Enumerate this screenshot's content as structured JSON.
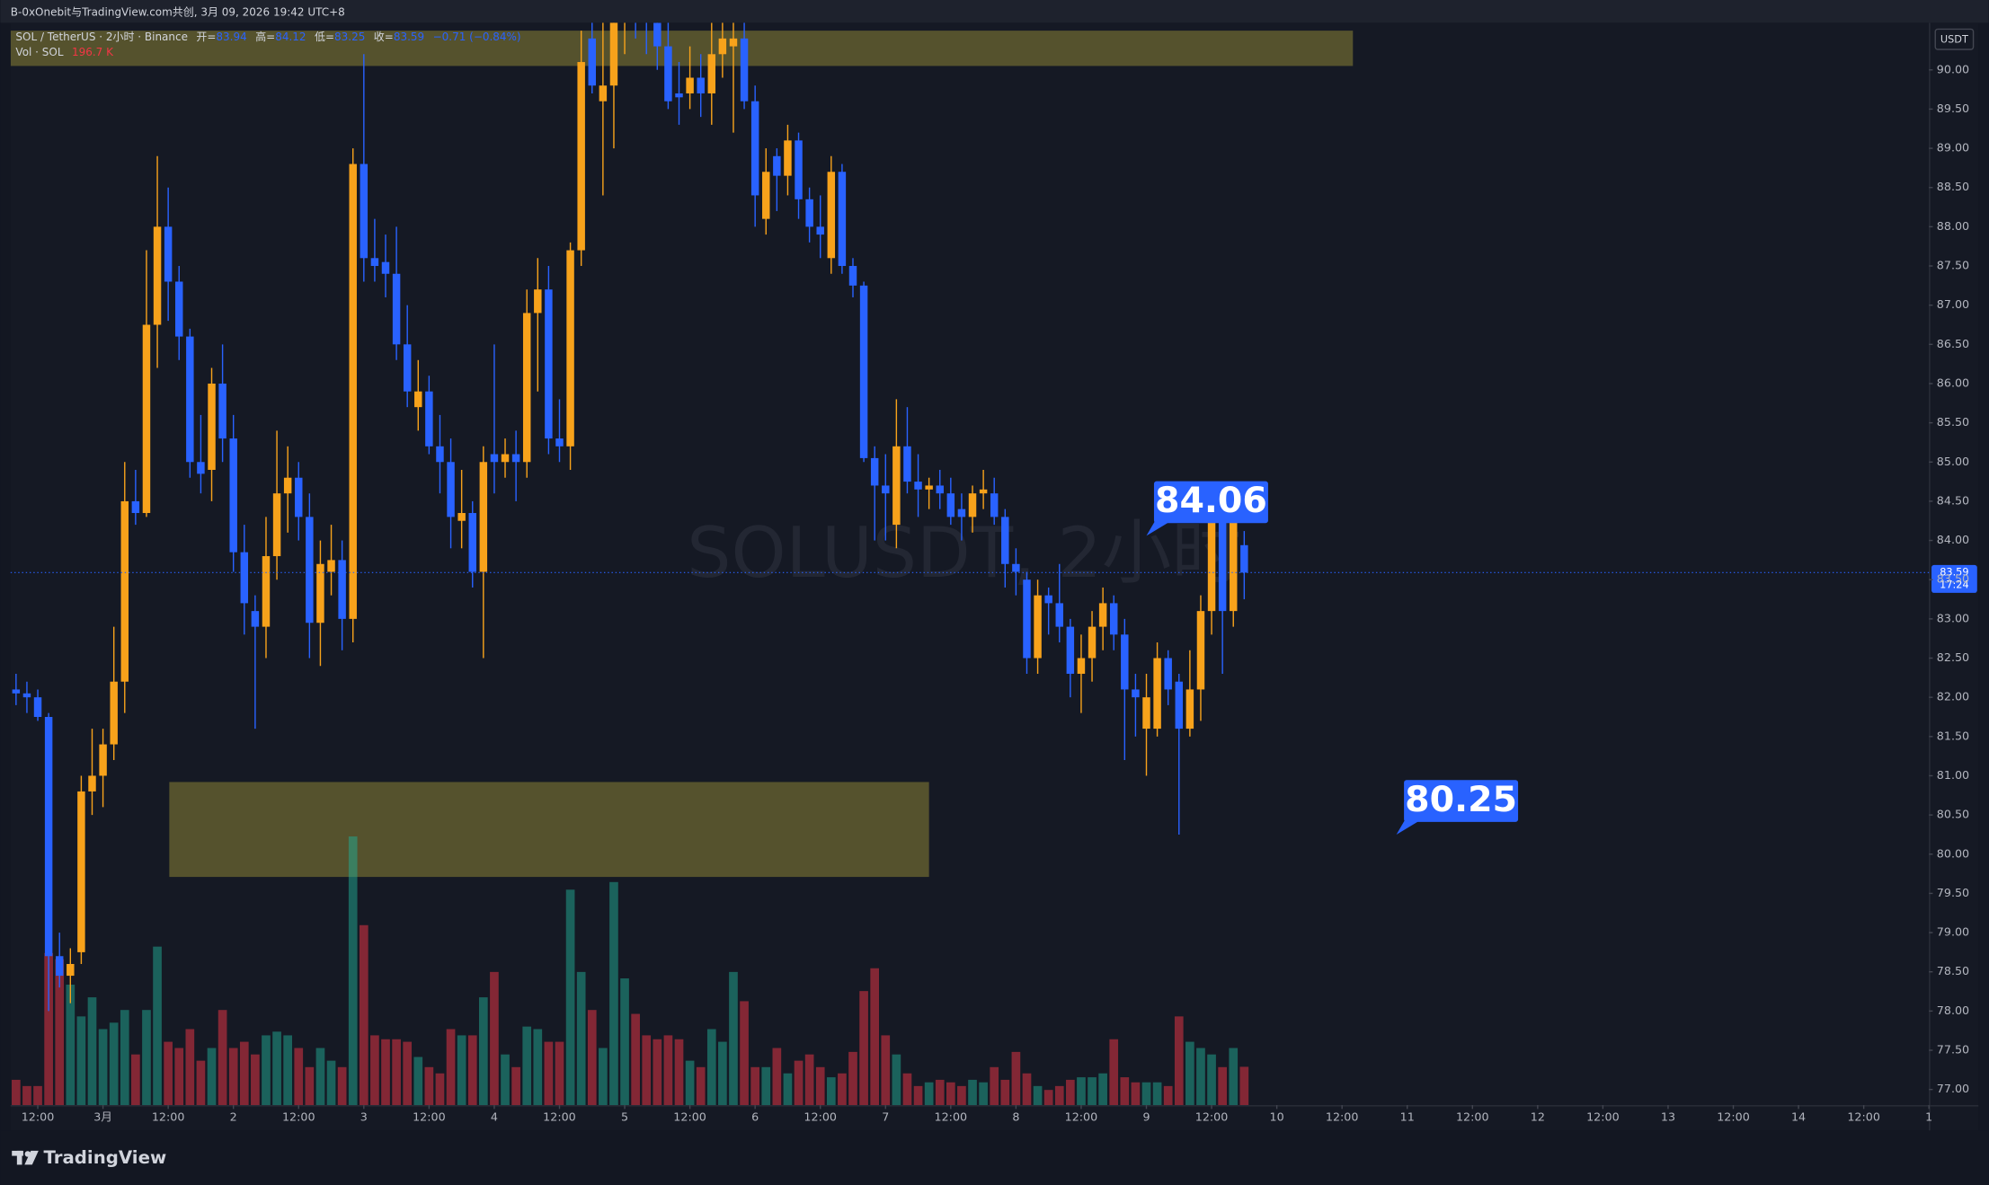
{
  "header": {
    "text": "B-0xOnebit与TradingView.com共创, 3月 09, 2026 19:42 UTC+8"
  },
  "chart_data": {
    "type": "candlestick",
    "legend": {
      "symbol": "SOL / TetherUS · 2小时 · Binance",
      "open_label": "开=",
      "high_label": "高=",
      "low_label": "低=",
      "close_label": "收=",
      "change_label": "−0.71 (−0.84%)"
    },
    "watermark": "SOLUSDT, 2小时",
    "currency": "USDT",
    "countdown": "17:24",
    "up_color": "#f7a21b",
    "down_color": "#2962ff",
    "open": [
      82.1,
      82.05,
      82.0,
      81.75,
      78.7,
      78.45,
      78.75,
      80.8,
      81.0,
      81.4,
      82.2,
      84.5,
      84.35,
      86.75,
      88.0,
      87.3,
      86.6,
      85.0,
      84.9,
      86.0,
      85.3,
      83.85,
      83.1,
      82.9,
      83.8,
      84.6,
      84.8,
      84.3,
      82.95,
      83.6,
      83.75,
      83.0,
      88.8,
      87.6,
      87.55,
      87.4,
      86.5,
      85.7,
      85.9,
      85.2,
      85.0,
      84.25,
      84.35,
      83.6,
      85.1,
      85.0,
      85.1,
      85.0,
      86.9,
      87.2,
      85.3,
      85.2,
      87.7,
      90.4,
      89.6,
      89.8,
      90.7,
      90.9,
      90.8,
      90.6,
      90.3,
      89.7,
      89.7,
      89.9,
      89.7,
      90.2,
      90.3,
      90.4,
      89.6,
      88.1,
      88.9,
      88.65,
      89.1,
      88.35,
      88.0,
      87.6,
      88.7,
      87.5,
      87.25,
      85.05,
      84.7,
      84.2,
      85.2,
      84.75,
      84.65,
      84.7,
      84.6,
      84.4,
      84.3,
      84.6,
      84.6,
      84.3,
      83.7,
      83.5,
      82.5,
      83.3,
      83.2,
      82.9,
      82.3,
      82.5,
      82.9,
      83.2,
      82.8,
      82.1,
      81.6,
      81.6,
      82.5,
      82.2,
      81.6,
      82.1,
      83.1,
      84.3,
      83.1,
      83.94
    ],
    "high": [
      82.3,
      82.2,
      82.1,
      81.8,
      79.0,
      78.8,
      81.0,
      81.6,
      81.6,
      82.9,
      85.0,
      84.9,
      87.7,
      88.9,
      88.5,
      87.5,
      86.7,
      85.6,
      86.2,
      86.5,
      85.6,
      84.2,
      83.3,
      84.3,
      85.4,
      85.2,
      85.0,
      84.6,
      84.0,
      84.2,
      84.0,
      89.0,
      90.2,
      88.1,
      87.9,
      88.0,
      87.0,
      86.3,
      86.1,
      85.6,
      85.3,
      84.9,
      84.5,
      85.2,
      86.5,
      85.3,
      85.4,
      87.2,
      87.6,
      87.5,
      85.8,
      87.8,
      90.5,
      91.0,
      90.8,
      91.2,
      91.4,
      91.3,
      91.1,
      90.9,
      90.8,
      90.1,
      90.3,
      90.2,
      90.6,
      90.8,
      90.7,
      90.7,
      89.8,
      89.0,
      89.0,
      89.3,
      89.2,
      88.5,
      88.4,
      88.9,
      88.8,
      87.6,
      87.3,
      85.2,
      85.1,
      85.8,
      85.7,
      85.1,
      84.8,
      84.9,
      84.8,
      84.6,
      84.7,
      84.9,
      84.8,
      84.4,
      83.9,
      83.6,
      83.5,
      83.4,
      83.7,
      83.0,
      82.8,
      83.1,
      83.4,
      83.3,
      83.0,
      82.3,
      82.3,
      82.7,
      82.6,
      82.3,
      82.6,
      83.3,
      84.5,
      84.4,
      84.5,
      84.12
    ],
    "low": [
      81.9,
      81.8,
      81.7,
      78.0,
      78.3,
      78.1,
      78.6,
      80.5,
      80.6,
      81.2,
      81.8,
      84.2,
      84.3,
      86.2,
      86.8,
      86.3,
      84.8,
      84.6,
      84.5,
      85.0,
      83.6,
      82.8,
      81.6,
      82.5,
      83.5,
      84.1,
      84.0,
      82.5,
      82.4,
      83.3,
      82.6,
      82.7,
      87.3,
      87.3,
      87.1,
      86.3,
      85.7,
      85.4,
      85.1,
      84.6,
      83.9,
      83.9,
      83.4,
      82.5,
      84.6,
      84.8,
      84.5,
      84.8,
      85.9,
      85.1,
      85.0,
      84.9,
      87.5,
      89.7,
      88.4,
      89.0,
      90.2,
      90.4,
      90.2,
      90.0,
      89.5,
      89.3,
      89.5,
      89.4,
      89.3,
      89.9,
      89.2,
      89.5,
      88.0,
      87.9,
      88.2,
      88.4,
      88.1,
      87.8,
      87.6,
      87.4,
      87.4,
      87.1,
      85.0,
      84.0,
      84.0,
      83.9,
      84.6,
      84.3,
      84.4,
      84.4,
      84.2,
      84.0,
      84.1,
      84.4,
      84.2,
      83.4,
      83.3,
      82.3,
      82.3,
      82.8,
      82.7,
      82.0,
      81.8,
      82.2,
      82.6,
      82.6,
      81.2,
      81.5,
      81.0,
      81.5,
      81.9,
      80.25,
      81.5,
      81.7,
      82.8,
      82.3,
      82.9,
      83.25
    ],
    "close": [
      82.05,
      82.0,
      81.75,
      78.7,
      78.45,
      78.6,
      80.8,
      81.0,
      81.4,
      82.2,
      84.5,
      84.35,
      86.75,
      88.0,
      87.3,
      86.6,
      85.0,
      84.85,
      86.0,
      85.3,
      83.85,
      83.2,
      82.9,
      83.8,
      84.6,
      84.8,
      84.3,
      82.95,
      83.7,
      83.75,
      83.0,
      88.8,
      87.6,
      87.5,
      87.4,
      86.5,
      85.9,
      85.9,
      85.2,
      85.0,
      84.3,
      84.35,
      83.6,
      85.0,
      85.0,
      85.1,
      85.0,
      86.9,
      87.2,
      85.3,
      85.2,
      87.7,
      90.1,
      89.8,
      89.8,
      90.7,
      90.9,
      90.8,
      90.6,
      90.3,
      89.6,
      89.65,
      89.9,
      89.7,
      90.2,
      90.4,
      90.4,
      89.6,
      88.4,
      88.7,
      88.65,
      89.1,
      88.35,
      88.0,
      87.9,
      88.7,
      87.5,
      87.25,
      85.05,
      84.7,
      84.6,
      85.2,
      84.75,
      84.65,
      84.7,
      84.6,
      84.3,
      84.3,
      84.6,
      84.65,
      84.3,
      83.7,
      83.6,
      82.5,
      83.3,
      83.2,
      82.9,
      82.3,
      82.5,
      82.9,
      83.2,
      82.8,
      82.1,
      82.0,
      82.0,
      82.5,
      82.1,
      81.6,
      82.1,
      83.1,
      84.3,
      83.1,
      84.3,
      83.59
    ],
    "volume": {
      "name": "Vol · SOL",
      "last_label": "196.7 K",
      "up_color": "#22ab94",
      "down_color": "#f23645",
      "values": [
        130,
        98,
        98,
        780,
        748,
        618,
        455,
        553,
        390,
        423,
        488,
        260,
        488,
        813,
        325,
        293,
        390,
        228,
        293,
        488,
        293,
        325,
        260,
        358,
        377,
        358,
        293,
        195,
        293,
        228,
        195,
        1378,
        923,
        358,
        338,
        338,
        325,
        247,
        195,
        163,
        390,
        358,
        358,
        553,
        683,
        260,
        195,
        403,
        390,
        325,
        325,
        1105,
        683,
        488,
        293,
        1144,
        650,
        468,
        358,
        338,
        358,
        338,
        228,
        195,
        390,
        325,
        683,
        533,
        195,
        195,
        293,
        163,
        228,
        260,
        195,
        143,
        163,
        273,
        585,
        702,
        358,
        260,
        163,
        98,
        117,
        130,
        117,
        98,
        130,
        117,
        195,
        130,
        273,
        163,
        98,
        78,
        98,
        130,
        143,
        143,
        163,
        338,
        143,
        117,
        117,
        117,
        98,
        455,
        325,
        293,
        260,
        195,
        293,
        196.7
      ]
    },
    "volume_ylim": [
      0,
      5550
    ],
    "xlim": [
      -0.5,
      176
    ],
    "ylim": [
      76.8,
      90.6
    ],
    "xticks": [
      {
        "value": 2,
        "label": "12:00"
      },
      {
        "value": 8,
        "label": "3月"
      },
      {
        "value": 14,
        "label": "12:00"
      },
      {
        "value": 20,
        "label": "2"
      },
      {
        "value": 26,
        "label": "12:00"
      },
      {
        "value": 32,
        "label": "3"
      },
      {
        "value": 38,
        "label": "12:00"
      },
      {
        "value": 44,
        "label": "4"
      },
      {
        "value": 50,
        "label": "12:00"
      },
      {
        "value": 56,
        "label": "5"
      },
      {
        "value": 62,
        "label": "12:00"
      },
      {
        "value": 68,
        "label": "6"
      },
      {
        "value": 74,
        "label": "12:00"
      },
      {
        "value": 80,
        "label": "7"
      },
      {
        "value": 86,
        "label": "12:00"
      },
      {
        "value": 92,
        "label": "8"
      },
      {
        "value": 98,
        "label": "12:00"
      },
      {
        "value": 104,
        "label": "9"
      },
      {
        "value": 110,
        "label": "12:00"
      },
      {
        "value": 116,
        "label": "10"
      },
      {
        "value": 122,
        "label": "12:00"
      },
      {
        "value": 128,
        "label": "11"
      },
      {
        "value": 134,
        "label": "12:00"
      },
      {
        "value": 140,
        "label": "12"
      },
      {
        "value": 146,
        "label": "12:00"
      },
      {
        "value": 152,
        "label": "13"
      },
      {
        "value": 158,
        "label": "12:00"
      },
      {
        "value": 164,
        "label": "14"
      },
      {
        "value": 170,
        "label": "12:00"
      },
      {
        "value": 176,
        "label": "1"
      }
    ],
    "yticks": [
      {
        "value": 77,
        "label": "77.00"
      },
      {
        "value": 77.5,
        "label": "77.50"
      },
      {
        "value": 78,
        "label": "78.00"
      },
      {
        "value": 78.5,
        "label": "78.50"
      },
      {
        "value": 79,
        "label": "79.00"
      },
      {
        "value": 79.5,
        "label": "79.50"
      },
      {
        "value": 80,
        "label": "80.00"
      },
      {
        "value": 80.5,
        "label": "80.50"
      },
      {
        "value": 81,
        "label": "81.00"
      },
      {
        "value": 81.5,
        "label": "81.50"
      },
      {
        "value": 82,
        "label": "82.00"
      },
      {
        "value": 82.5,
        "label": "82.50"
      },
      {
        "value": 83,
        "label": "83.00"
      },
      {
        "value": 83.5,
        "label": "83.50"
      },
      {
        "value": 84,
        "label": "84.00"
      },
      {
        "value": 84.5,
        "label": "84.50"
      },
      {
        "value": 85,
        "label": "85.00"
      },
      {
        "value": 85.5,
        "label": "85.50"
      },
      {
        "value": 86,
        "label": "86.00"
      },
      {
        "value": 86.5,
        "label": "86.50"
      },
      {
        "value": 87,
        "label": "87.00"
      },
      {
        "value": 87.5,
        "label": "87.50"
      },
      {
        "value": 88,
        "label": "88.00"
      },
      {
        "value": 88.5,
        "label": "88.50"
      },
      {
        "value": 89,
        "label": "89.00"
      },
      {
        "value": 89.5,
        "label": "89.50"
      },
      {
        "value": 90,
        "label": "90.00"
      }
    ],
    "zones": [
      {
        "from": -0.5,
        "to": 123,
        "low": 90.05,
        "high": 90.5,
        "color": "#6b6530"
      },
      {
        "from": 14.1,
        "to": 84,
        "low": 79.71,
        "high": 80.92,
        "color": "#6b6530"
      }
    ],
    "callouts": [
      {
        "value": 84.06,
        "x": 104,
        "color": "#2962ff"
      },
      {
        "value": 80.25,
        "x": 127,
        "color": "#2962ff"
      }
    ]
  },
  "footer": {
    "brand": "TradingView"
  }
}
